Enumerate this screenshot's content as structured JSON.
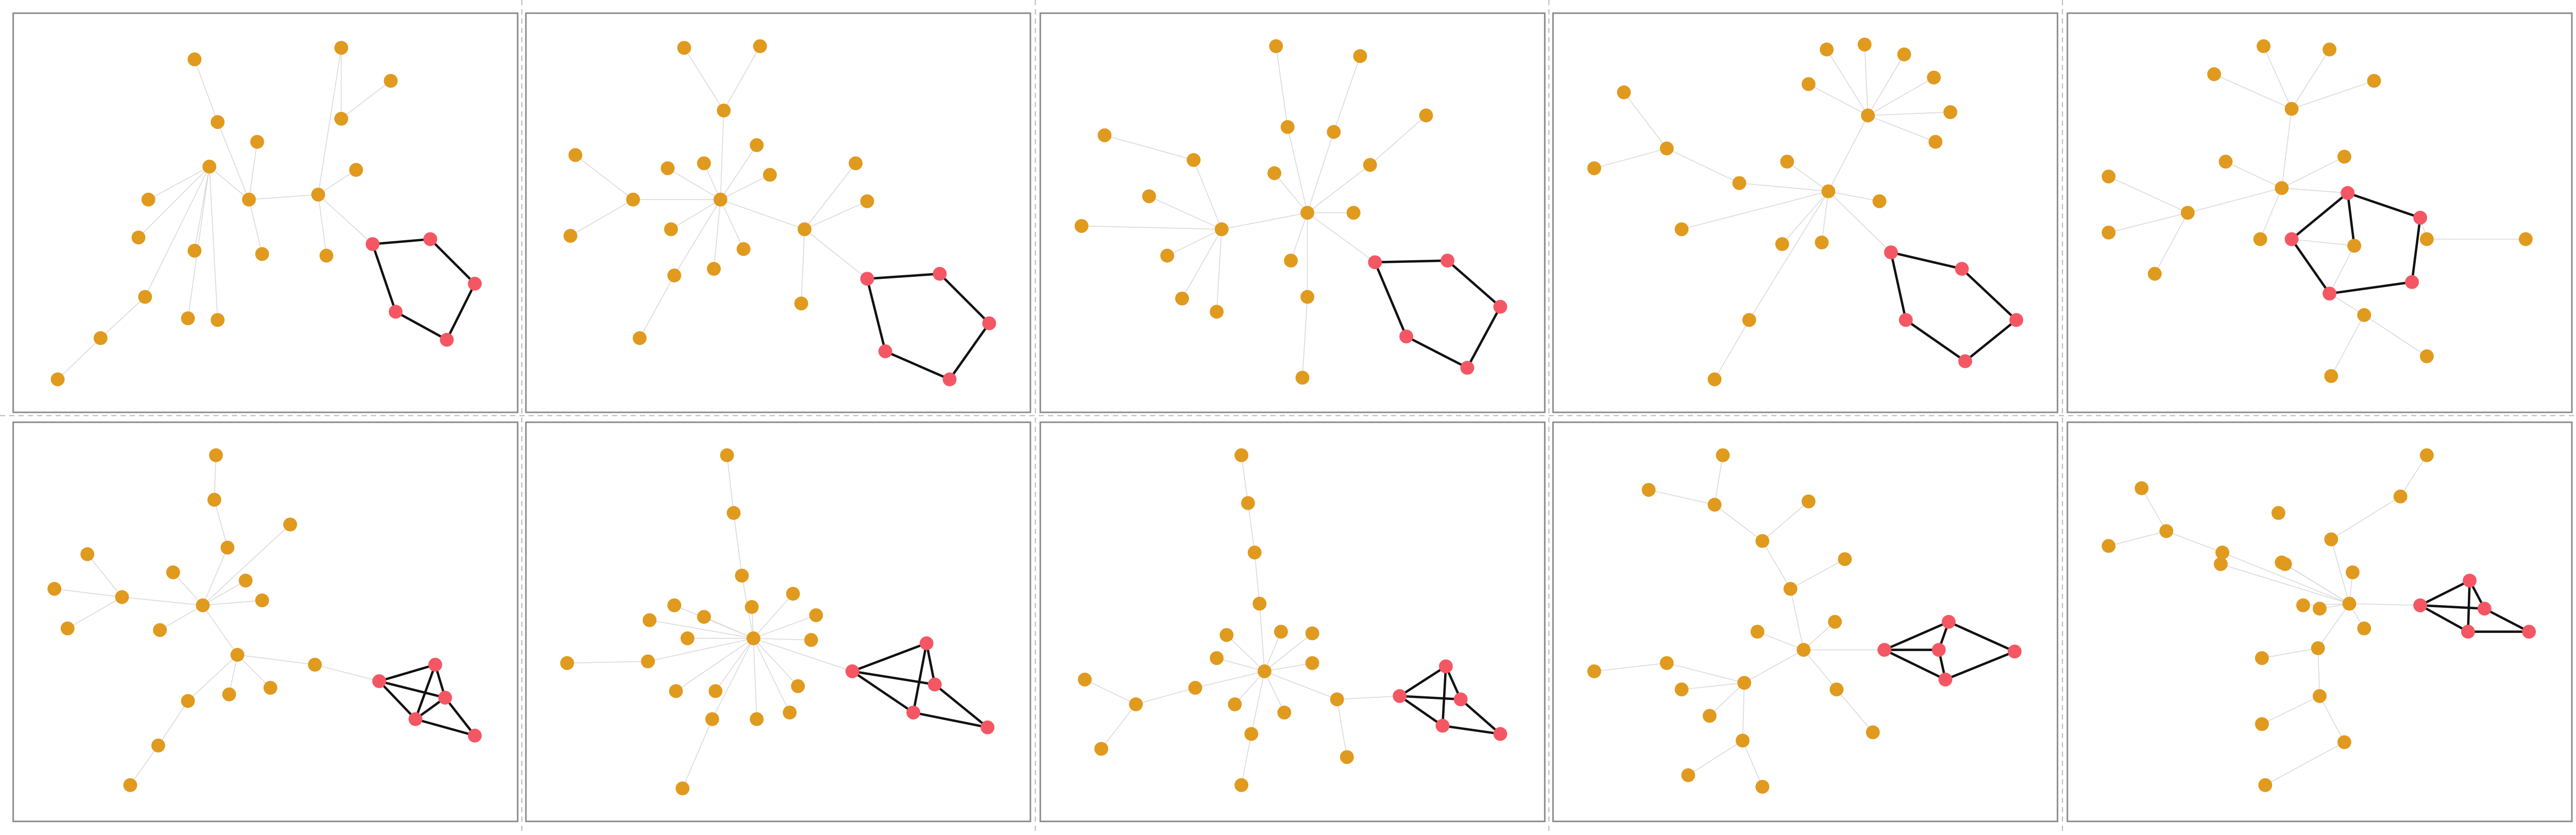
{
  "colors": {
    "node_default": "#e09a1e",
    "node_motif": "#f45763",
    "edge_default": "#d9d9d9",
    "edge_motif": "#111111"
  },
  "panels": [
    {
      "id": "row1-col1",
      "motif": "5-cycle"
    },
    {
      "id": "row1-col2",
      "motif": "5-cycle"
    },
    {
      "id": "row1-col3",
      "motif": "5-cycle"
    },
    {
      "id": "row1-col4",
      "motif": "5-cycle"
    },
    {
      "id": "row1-col5",
      "motif": "5-cycle"
    },
    {
      "id": "row2-col1",
      "motif": "house-x"
    },
    {
      "id": "row2-col2",
      "motif": "house-x"
    },
    {
      "id": "row2-col3",
      "motif": "house-x"
    },
    {
      "id": "row2-col4",
      "motif": "house-x"
    },
    {
      "id": "row2-col5",
      "motif": "house-x"
    }
  ]
}
